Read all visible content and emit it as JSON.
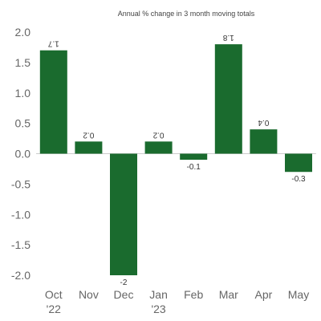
{
  "chart_data": {
    "type": "bar",
    "title": "Annual % change in 3 month moving totals",
    "categories": [
      {
        "line1": "Oct",
        "line2": "'22"
      },
      {
        "line1": "Nov",
        "line2": ""
      },
      {
        "line1": "Dec",
        "line2": ""
      },
      {
        "line1": "Jan",
        "line2": "'23"
      },
      {
        "line1": "Feb",
        "line2": ""
      },
      {
        "line1": "Mar",
        "line2": ""
      },
      {
        "line1": "Apr",
        "line2": ""
      },
      {
        "line1": "May",
        "line2": ""
      }
    ],
    "values": [
      1.7,
      0.2,
      -2,
      0.2,
      -0.1,
      1.8,
      0.4,
      -0.3
    ],
    "data_labels": [
      "1.7",
      "0.2",
      "-2",
      "0.2",
      "-0.1",
      "1.8",
      "0.4",
      "-0.3"
    ],
    "data_label_mirrored": [
      true,
      true,
      false,
      true,
      false,
      true,
      true,
      false
    ],
    "y_ticks": [
      "2.0",
      "1.5",
      "1.0",
      "0.5",
      "0.0",
      "-0.5",
      "-1.0",
      "-1.5",
      "-2.0"
    ],
    "ylim": [
      -2,
      2
    ],
    "grid": false,
    "bar_color": "#1a6b2e",
    "axis_color": "#cccccc"
  }
}
